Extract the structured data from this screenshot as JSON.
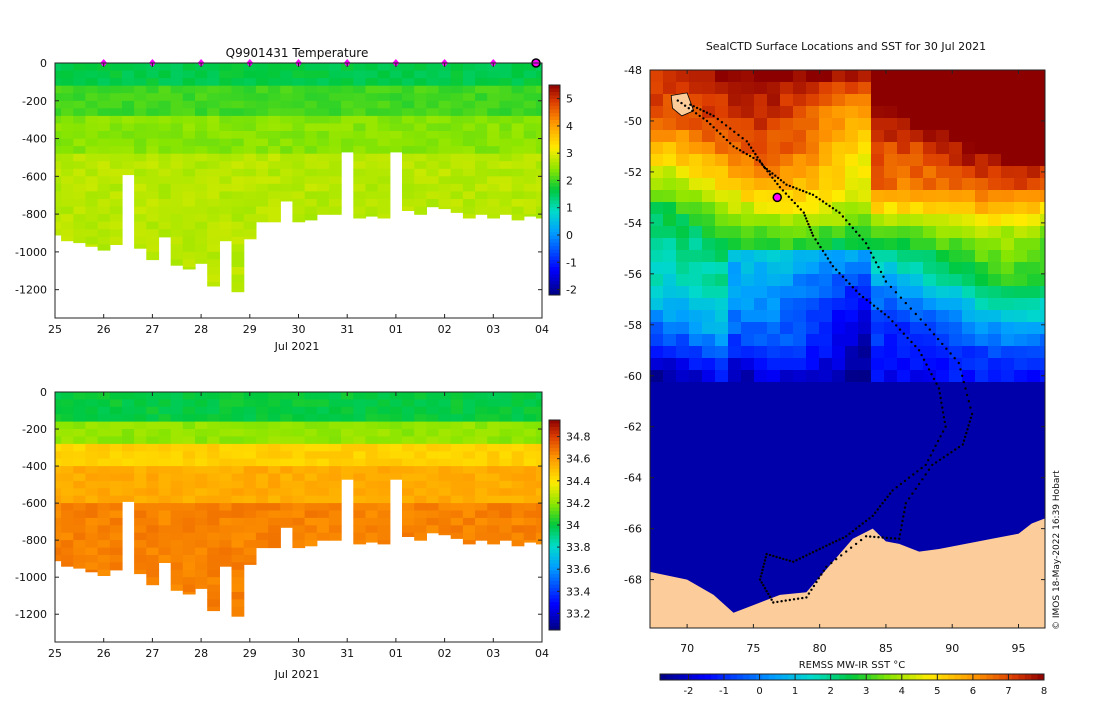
{
  "chart_data": [
    {
      "type": "heatmap",
      "title": "Q9901431  Temperature",
      "xlabel": "Jul 2021",
      "x_ticks": [
        "25",
        "26",
        "27",
        "28",
        "29",
        "30",
        "31",
        "01",
        "02",
        "03",
        "04"
      ],
      "y_ticks": [
        0,
        -200,
        -400,
        -600,
        -800,
        -1000,
        -1200
      ],
      "ylim": [
        -1350,
        0
      ],
      "colorbar": {
        "ticks": [
          5,
          4,
          3,
          2,
          1,
          0,
          -1,
          -2
        ],
        "range": [
          -2.2,
          5.5
        ]
      },
      "profile_days": [
        0,
        0.25,
        0.5,
        0.75,
        1,
        1.25,
        1.5,
        1.75,
        2,
        2.25,
        2.5,
        2.75,
        3,
        3.25,
        3.5,
        3.75,
        4,
        4.25,
        4.5,
        4.75,
        5,
        5.25,
        5.5,
        5.75,
        6,
        6.25,
        6.5,
        6.75,
        7,
        7.25,
        7.5,
        7.75,
        8,
        8.25,
        8.5,
        8.75,
        9,
        9.25,
        9.5,
        9.75,
        10
      ],
      "profile_max_depth": [
        910,
        940,
        950,
        970,
        990,
        960,
        590,
        980,
        1040,
        920,
        1070,
        1090,
        1060,
        1180,
        940,
        1210,
        930,
        840,
        840,
        730,
        840,
        830,
        800,
        800,
        470,
        820,
        810,
        820,
        470,
        780,
        800,
        760,
        770,
        790,
        820,
        800,
        820,
        800,
        830,
        810,
        820
      ],
      "value_bands": [
        {
          "depth_to": 120,
          "value": 1.6
        },
        {
          "depth_to": 280,
          "value": 2.0
        },
        {
          "depth_to": 450,
          "value": 2.4
        },
        {
          "depth_to": 1250,
          "value": 2.7
        }
      ],
      "markers": [
        1,
        2,
        3,
        4,
        5,
        6,
        7,
        8,
        9
      ]
    },
    {
      "type": "heatmap",
      "title": "",
      "xlabel": "Jul 2021",
      "x_ticks": [
        "25",
        "26",
        "27",
        "28",
        "29",
        "30",
        "31",
        "01",
        "02",
        "03",
        "04"
      ],
      "y_ticks": [
        0,
        -200,
        -400,
        -600,
        -800,
        -1000,
        -1200
      ],
      "ylim": [
        -1350,
        0
      ],
      "colorbar": {
        "ticks": [
          "34.8",
          "34.6",
          "34.4",
          "34.2",
          "34",
          "33.8",
          "33.6",
          "33.4",
          "33.2"
        ],
        "range": [
          33.05,
          34.95
        ]
      },
      "value_bands": [
        {
          "depth_to": 150,
          "value": 34.0
        },
        {
          "depth_to": 250,
          "value": 34.2
        },
        {
          "depth_to": 400,
          "value": 34.45
        },
        {
          "depth_to": 600,
          "value": 34.55
        },
        {
          "depth_to": 1250,
          "value": 34.65
        }
      ]
    },
    {
      "type": "heatmap",
      "title": "SealCTD Surface Locations and SST for 30 Jul 2021",
      "colorbar_label": "REMSS MW-IR SST °C",
      "colorbar_ticks": [
        -2,
        -1,
        0,
        1,
        2,
        3,
        4,
        5,
        6,
        7,
        8
      ],
      "x_ticks": [
        70,
        75,
        80,
        85,
        90,
        95
      ],
      "y_ticks": [
        -48,
        -50,
        -52,
        -54,
        -56,
        -58,
        -60,
        -62,
        -64,
        -66,
        -68
      ],
      "xlim": [
        67.2,
        97.0
      ],
      "ylim": [
        -69.9,
        -48.0
      ],
      "credit": "© IMOS 18-May-2022 16:39 Hobart",
      "track": [
        [
          69.3,
          -49.2
        ],
        [
          71.5,
          -50.0
        ],
        [
          73.5,
          -51.0
        ],
        [
          75.5,
          -51.6
        ],
        [
          77.0,
          -52.6
        ],
        [
          78.8,
          -53.6
        ],
        [
          79.5,
          -54.5
        ],
        [
          81.0,
          -55.7
        ],
        [
          83.0,
          -56.8
        ],
        [
          85.2,
          -57.7
        ],
        [
          87.5,
          -59.0
        ],
        [
          89.0,
          -60.5
        ],
        [
          89.5,
          -62.0
        ],
        [
          88.0,
          -63.5
        ],
        [
          85.5,
          -64.5
        ],
        [
          84.0,
          -65.5
        ],
        [
          82.0,
          -66.3
        ],
        [
          80.0,
          -66.8
        ],
        [
          78.0,
          -67.3
        ],
        [
          76.0,
          -67.0
        ],
        [
          75.5,
          -68.0
        ],
        [
          76.5,
          -68.9
        ],
        [
          79.0,
          -68.7
        ],
        [
          80.5,
          -67.5
        ],
        [
          83.5,
          -66.3
        ],
        [
          86.0,
          -66.4
        ],
        [
          86.5,
          -65.0
        ],
        [
          88.5,
          -63.5
        ],
        [
          90.8,
          -62.7
        ],
        [
          91.5,
          -61.5
        ],
        [
          90.5,
          -59.5
        ],
        [
          88.0,
          -58.0
        ],
        [
          85.0,
          -56.3
        ],
        [
          83.5,
          -54.8
        ],
        [
          81.5,
          -53.6
        ],
        [
          79.5,
          -52.9
        ],
        [
          77.5,
          -52.5
        ],
        [
          75.8,
          -51.8
        ],
        [
          74.5,
          -50.8
        ],
        [
          72.0,
          -49.8
        ],
        [
          70.0,
          -49.3
        ]
      ],
      "current_position": [
        76.8,
        -53.0
      ]
    }
  ],
  "colors": {
    "missing": "#ffffff",
    "land": "#fccc9a",
    "marker": "#ff00ff"
  }
}
